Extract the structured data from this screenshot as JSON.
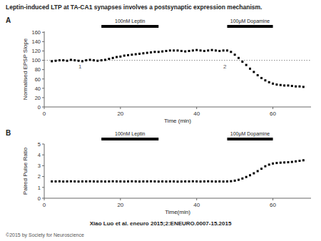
{
  "title": "Leptin-induced LTP at TA-CA1 synapses involves a postsynaptic expression mechanism.",
  "annotations": [
    "Xiao Luo et al. eneuro 2015;2:ENEURO.0007-15.2015",
    "©2015 by Society for Neuroscience"
  ],
  "chart_data": [
    {
      "type": "scatter",
      "title": "A",
      "x_label": "Time (min)",
      "y_label": "Normalised EPSP Slope",
      "xlim": [
        0,
        70
      ],
      "ylim": [
        0,
        162
      ],
      "xticks": [
        0,
        20,
        40,
        60
      ],
      "yticks": [
        0,
        20,
        40,
        60,
        80,
        100,
        120,
        140,
        160
      ],
      "grid": false,
      "marker": "square",
      "color": "#000000",
      "annotations": [
        {
          "y": 100,
          "line_style": "dotted"
        },
        {
          "text": "100nM Leptin",
          "x": [
            15,
            30
          ]
        },
        {
          "text": "100μM Dopamine",
          "x": [
            48,
            60
          ]
        },
        {
          "text": "1",
          "x": 9,
          "y": 83
        },
        {
          "text": "2",
          "x": 47,
          "y": 83
        }
      ],
      "x": [
        2,
        3,
        4,
        5,
        6,
        7,
        8,
        9,
        10,
        11,
        12,
        13,
        14,
        15,
        16,
        17,
        18,
        19,
        20,
        21,
        22,
        23,
        24,
        25,
        26,
        27,
        28,
        29,
        30,
        31,
        32,
        33,
        34,
        35,
        36,
        37,
        38,
        39,
        40,
        41,
        42,
        43,
        44,
        45,
        46,
        47,
        48,
        49,
        50,
        51,
        52,
        53,
        54,
        55,
        56,
        57,
        58,
        59,
        60,
        61,
        62,
        63,
        64,
        65,
        66,
        67,
        68
      ],
      "values": [
        98,
        99,
        100,
        100,
        99,
        101,
        100,
        99,
        98,
        100,
        101,
        100,
        99,
        100,
        101,
        103,
        105,
        107,
        108,
        110,
        111,
        112,
        113,
        114,
        115,
        116,
        117,
        118,
        118,
        119,
        120,
        121,
        121,
        121,
        120,
        119,
        120,
        121,
        122,
        121,
        120,
        121,
        122,
        121,
        120,
        121,
        121,
        118,
        112,
        105,
        97,
        90,
        82,
        75,
        68,
        62,
        57,
        53,
        50,
        48,
        47,
        46,
        46,
        45,
        44,
        44,
        43
      ]
    },
    {
      "type": "scatter",
      "title": "B",
      "x_label": "Time(min)",
      "y_label": "Paired Pulse Ratio",
      "xlim": [
        0,
        70
      ],
      "ylim": [
        0,
        5
      ],
      "xticks": [
        0,
        20,
        40,
        60
      ],
      "yticks": [
        0,
        1,
        2,
        3,
        4,
        5
      ],
      "grid": false,
      "marker": "square",
      "color": "#000000",
      "annotations": [
        {
          "text": "100nM Leptin",
          "x": [
            15,
            30
          ]
        },
        {
          "text": "100μM Dopamine",
          "x": [
            48,
            60
          ]
        }
      ],
      "x": [
        2,
        3,
        4,
        5,
        6,
        7,
        8,
        9,
        10,
        11,
        12,
        13,
        14,
        15,
        16,
        17,
        18,
        19,
        20,
        21,
        22,
        23,
        24,
        25,
        26,
        27,
        28,
        29,
        30,
        31,
        32,
        33,
        34,
        35,
        36,
        37,
        38,
        39,
        40,
        41,
        42,
        43,
        44,
        45,
        46,
        47,
        48,
        49,
        50,
        51,
        52,
        53,
        54,
        55,
        56,
        57,
        58,
        59,
        60,
        61,
        62,
        63,
        64,
        65,
        66,
        67,
        68
      ],
      "values": [
        1.55,
        1.55,
        1.56,
        1.54,
        1.55,
        1.56,
        1.55,
        1.54,
        1.55,
        1.55,
        1.56,
        1.55,
        1.54,
        1.55,
        1.54,
        1.55,
        1.56,
        1.55,
        1.55,
        1.54,
        1.55,
        1.56,
        1.55,
        1.54,
        1.55,
        1.55,
        1.56,
        1.55,
        1.54,
        1.55,
        1.54,
        1.55,
        1.55,
        1.53,
        1.54,
        1.55,
        1.55,
        1.56,
        1.55,
        1.54,
        1.55,
        1.56,
        1.55,
        1.54,
        1.55,
        1.54,
        1.55,
        1.57,
        1.62,
        1.7,
        1.82,
        1.96,
        2.12,
        2.3,
        2.5,
        2.72,
        2.95,
        3.1,
        3.2,
        3.25,
        3.28,
        3.3,
        3.32,
        3.35,
        3.4,
        3.45,
        3.5
      ]
    }
  ]
}
